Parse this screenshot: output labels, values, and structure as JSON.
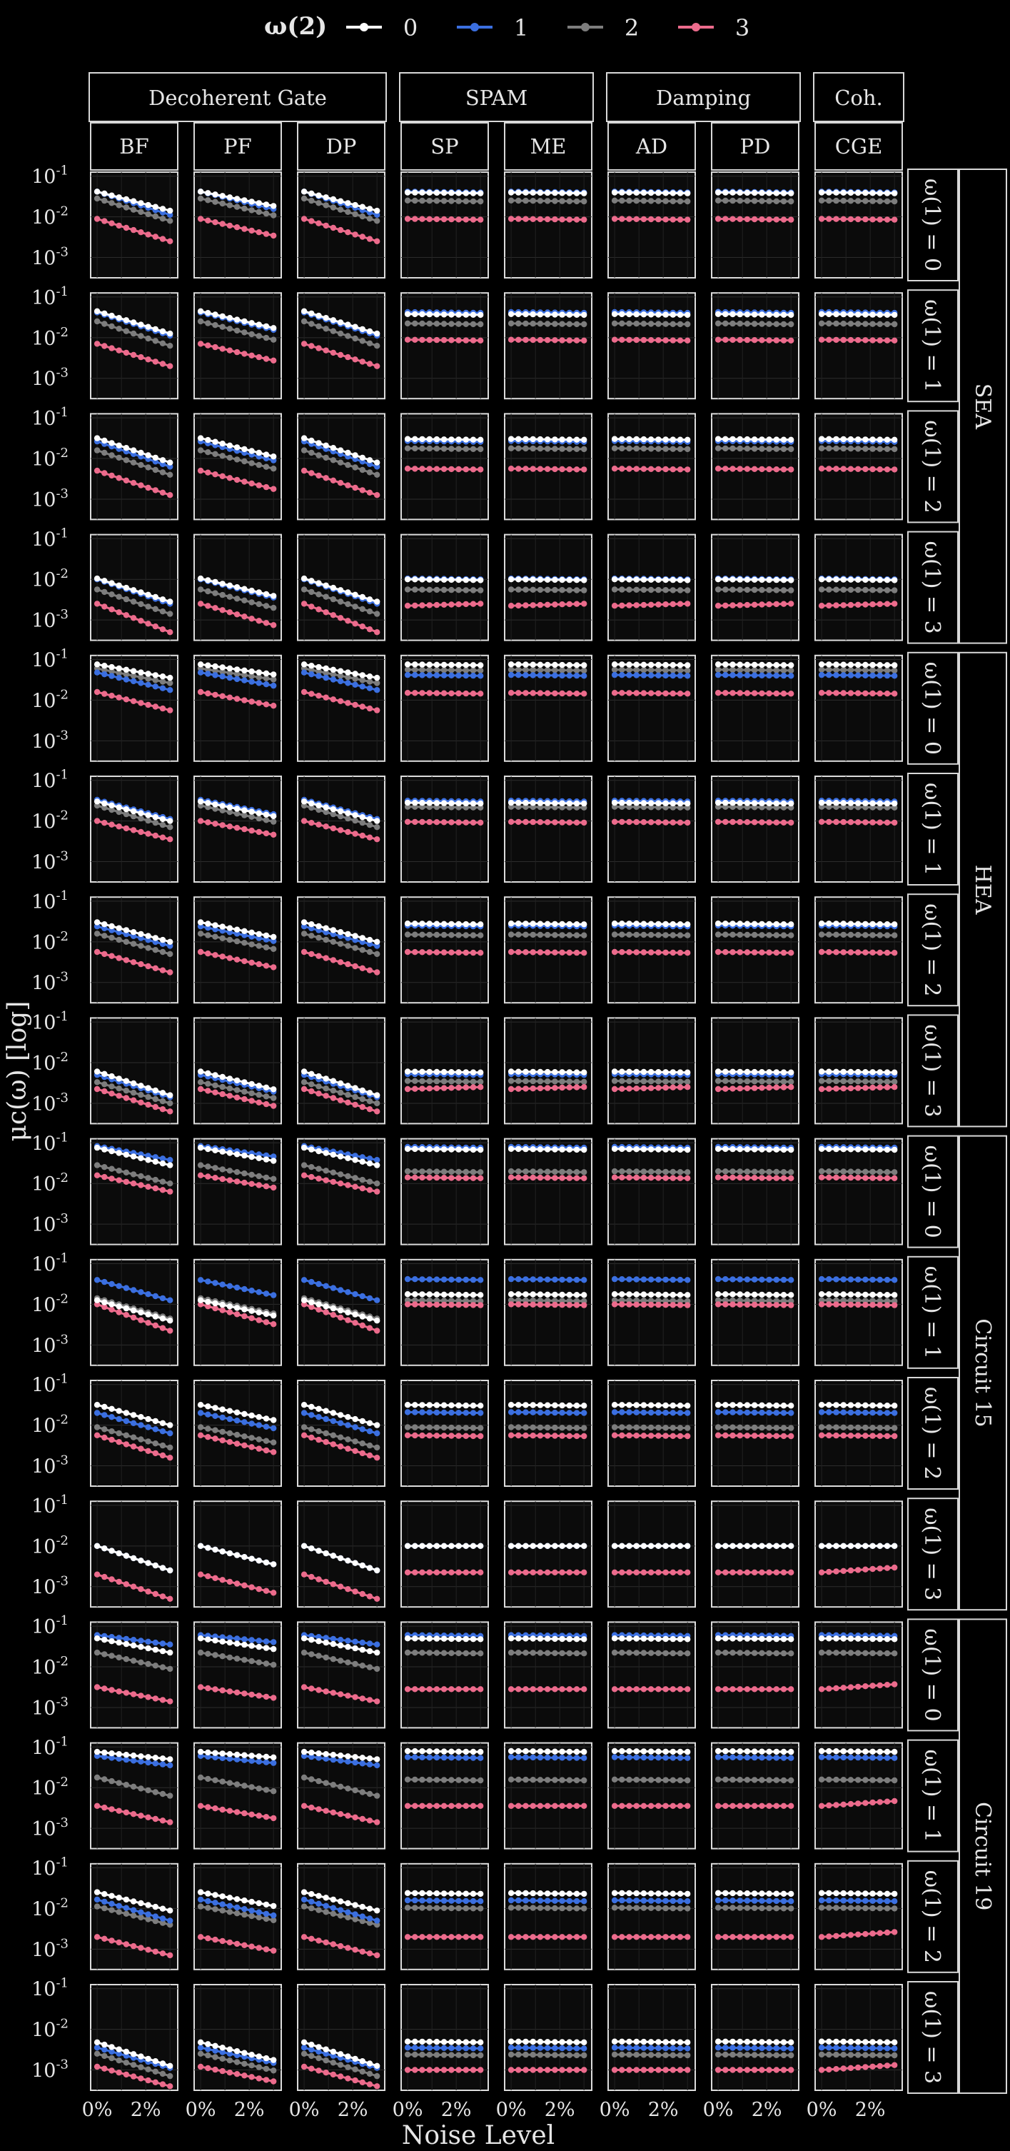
{
  "chart_data": {
    "type": "line",
    "legend": {
      "title": "ω(2)",
      "entries": [
        {
          "label": "0",
          "color": "#ffffff"
        },
        {
          "label": "1",
          "color": "#3b6fe0"
        },
        {
          "label": "2",
          "color": "#7d7d7d"
        },
        {
          "label": "3",
          "color": "#ec6b8c"
        }
      ]
    },
    "xlabel": "Noise Level",
    "ylabel": "μc(ω) [log]",
    "x": [
      0.0,
      0.3,
      0.6,
      0.9,
      1.2,
      1.5,
      1.8,
      2.1,
      2.4,
      2.7,
      3.0
    ],
    "xticks": [
      {
        "value": 0,
        "label": "0%"
      },
      {
        "value": 2,
        "label": "2%"
      }
    ],
    "xlim": [
      -0.15,
      3.2
    ],
    "ylim_log10": [
      -3.5,
      -0.9
    ],
    "yticks": [
      {
        "base": "10",
        "exp": "-1",
        "value": -1
      },
      {
        "base": "10",
        "exp": "-2",
        "value": -2
      },
      {
        "base": "10",
        "exp": "-3",
        "value": -3
      }
    ],
    "column_groups": [
      {
        "label": "Decoherent Gate",
        "columns": [
          "BF",
          "PF",
          "DP"
        ]
      },
      {
        "label": "SPAM",
        "columns": [
          "SP",
          "ME"
        ]
      },
      {
        "label": "Damping",
        "columns": [
          "AD",
          "PD"
        ]
      },
      {
        "label": "Coh.",
        "columns": [
          "CGE"
        ]
      }
    ],
    "row_groups": [
      {
        "label": "SEA",
        "rows": [
          "ω(1) = 0",
          "ω(1) = 1",
          "ω(1) = 2",
          "ω(1) = 3"
        ]
      },
      {
        "label": "HEA",
        "rows": [
          "ω(1) = 0",
          "ω(1) = 1",
          "ω(1) = 2",
          "ω(1) = 3"
        ]
      },
      {
        "label": "Circuit 15",
        "rows": [
          "ω(1) = 0",
          "ω(1) = 1",
          "ω(1) = 2",
          "ω(1) = 3"
        ]
      },
      {
        "label": "Circuit 19",
        "rows": [
          "ω(1) = 0",
          "ω(1) = 1",
          "ω(1) = 2",
          "ω(1) = 3"
        ]
      }
    ],
    "series_note": "log10 of μc at 0% and 3% noise per series [ω(2)=0, 1, 2, 3]; values interpolated linearly in log space between the endpoints",
    "panels": [
      {
        "group": "SEA",
        "row": "ω(1) = 0",
        "decoherent": [
          [
            -1.38,
            -1.85
          ],
          [
            -1.38,
            -1.95
          ],
          [
            -1.55,
            -2.1
          ],
          [
            -2.05,
            -2.6
          ]
        ],
        "flat": [
          [
            -1.4,
            -1.42
          ],
          [
            -1.38,
            -1.4
          ],
          [
            -1.6,
            -1.62
          ],
          [
            -2.05,
            -2.07
          ]
        ],
        "cge_sloped": false
      },
      {
        "group": "SEA",
        "row": "ω(1) = 1",
        "decoherent": [
          [
            -1.35,
            -1.9
          ],
          [
            -1.38,
            -1.95
          ],
          [
            -1.6,
            -2.2
          ],
          [
            -2.15,
            -2.7
          ]
        ],
        "flat": [
          [
            -1.42,
            -1.44
          ],
          [
            -1.37,
            -1.39
          ],
          [
            -1.65,
            -1.67
          ],
          [
            -2.05,
            -2.07
          ]
        ],
        "cge_sloped": false
      },
      {
        "group": "SEA",
        "row": "ω(1) = 2",
        "decoherent": [
          [
            -1.5,
            -2.1
          ],
          [
            -1.58,
            -2.2
          ],
          [
            -1.8,
            -2.4
          ],
          [
            -2.3,
            -2.9
          ]
        ],
        "flat": [
          [
            -1.52,
            -1.54
          ],
          [
            -1.57,
            -1.59
          ],
          [
            -1.75,
            -1.77
          ],
          [
            -2.25,
            -2.27
          ]
        ],
        "cge_sloped": false
      },
      {
        "group": "SEA",
        "row": "ω(1) = 3",
        "decoherent": [
          [
            -1.98,
            -2.55
          ],
          [
            -2.0,
            -2.6
          ],
          [
            -2.25,
            -2.85
          ],
          [
            -2.6,
            -3.3
          ]
        ],
        "flat": [
          [
            -2.0,
            -2.02
          ],
          [
            -1.98,
            -2.0
          ],
          [
            -2.25,
            -2.27
          ],
          [
            -2.65,
            -2.6
          ]
        ],
        "cge_sloped": false
      },
      {
        "group": "HEA",
        "row": "ω(1) = 0",
        "decoherent": [
          [
            -1.12,
            -1.45
          ],
          [
            -1.32,
            -1.75
          ],
          [
            -1.22,
            -1.58
          ],
          [
            -1.8,
            -2.25
          ]
        ],
        "flat": [
          [
            -1.12,
            -1.14
          ],
          [
            -1.38,
            -1.4
          ],
          [
            -1.25,
            -1.27
          ],
          [
            -1.82,
            -1.84
          ]
        ],
        "cge_sloped": false
      },
      {
        "group": "HEA",
        "row": "ω(1) = 1",
        "decoherent": [
          [
            -1.52,
            -2.0
          ],
          [
            -1.48,
            -1.95
          ],
          [
            -1.62,
            -2.15
          ],
          [
            -2.0,
            -2.45
          ]
        ],
        "flat": [
          [
            -1.55,
            -1.57
          ],
          [
            -1.5,
            -1.52
          ],
          [
            -1.65,
            -1.67
          ],
          [
            -2.02,
            -2.04
          ]
        ],
        "cge_sloped": false
      },
      {
        "group": "HEA",
        "row": "ω(1) = 2",
        "decoherent": [
          [
            -1.52,
            -2.0
          ],
          [
            -1.62,
            -2.1
          ],
          [
            -1.8,
            -2.3
          ],
          [
            -2.25,
            -2.75
          ]
        ],
        "flat": [
          [
            -1.55,
            -1.57
          ],
          [
            -1.6,
            -1.62
          ],
          [
            -1.82,
            -1.84
          ],
          [
            -2.25,
            -2.27
          ]
        ],
        "cge_sloped": false
      },
      {
        "group": "HEA",
        "row": "ω(1) = 3",
        "decoherent": [
          [
            -2.22,
            -2.8
          ],
          [
            -2.3,
            -2.85
          ],
          [
            -2.48,
            -3.0
          ],
          [
            -2.65,
            -3.2
          ]
        ],
        "flat": [
          [
            -2.22,
            -2.24
          ],
          [
            -2.28,
            -2.3
          ],
          [
            -2.45,
            -2.47
          ],
          [
            -2.65,
            -2.6
          ]
        ],
        "cge_sloped": false
      },
      {
        "group": "Circuit 15",
        "row": "ω(1) = 0",
        "decoherent": [
          [
            -1.12,
            -1.55
          ],
          [
            -1.08,
            -1.42
          ],
          [
            -1.55,
            -2.0
          ],
          [
            -1.8,
            -2.2
          ]
        ],
        "flat": [
          [
            -1.15,
            -1.17
          ],
          [
            -1.1,
            -1.12
          ],
          [
            -1.7,
            -1.72
          ],
          [
            -1.85,
            -1.87
          ]
        ],
        "cge_sloped": false
      },
      {
        "group": "Circuit 15",
        "row": "ω(1) = 1",
        "decoherent": [
          [
            -1.9,
            -2.4
          ],
          [
            -1.4,
            -1.9
          ],
          [
            -1.85,
            -2.35
          ],
          [
            -2.0,
            -2.65
          ]
        ],
        "flat": [
          [
            -1.75,
            -1.77
          ],
          [
            -1.38,
            -1.4
          ],
          [
            -1.9,
            -1.92
          ],
          [
            -2.0,
            -2.02
          ]
        ],
        "cge_sloped": false
      },
      {
        "group": "Circuit 15",
        "row": "ω(1) = 2",
        "decoherent": [
          [
            -1.5,
            -2.0
          ],
          [
            -1.7,
            -2.2
          ],
          [
            -2.05,
            -2.55
          ],
          [
            -2.25,
            -2.8
          ]
        ],
        "flat": [
          [
            -1.5,
            -1.52
          ],
          [
            -1.68,
            -1.7
          ],
          [
            -2.05,
            -2.07
          ],
          [
            -2.25,
            -2.27
          ]
        ],
        "cge_sloped": false
      },
      {
        "group": "Circuit 15",
        "row": "ω(1) = 3",
        "decoherent": [
          [
            -2.0,
            -2.6
          ],
          [
            -2.0,
            -2.6
          ],
          [
            null,
            null
          ],
          [
            -2.7,
            -3.3
          ]
        ],
        "flat": [
          [
            -2.0,
            -2.0
          ],
          [
            -2.0,
            -2.0
          ],
          [
            null,
            null
          ],
          [
            -2.65,
            -2.65
          ]
        ],
        "cge_sloped": true
      },
      {
        "group": "Circuit 19",
        "row": "ω(1) = 0",
        "decoherent": [
          [
            -1.3,
            -1.65
          ],
          [
            -1.22,
            -1.45
          ],
          [
            -1.65,
            -2.05
          ],
          [
            -2.5,
            -2.85
          ]
        ],
        "flat": [
          [
            -1.3,
            -1.32
          ],
          [
            -1.22,
            -1.24
          ],
          [
            -1.65,
            -1.67
          ],
          [
            -2.55,
            -2.55
          ]
        ],
        "cge_sloped": true
      },
      {
        "group": "Circuit 19",
        "row": "ω(1) = 1",
        "decoherent": [
          [
            -1.12,
            -1.3
          ],
          [
            -1.22,
            -1.45
          ],
          [
            -1.75,
            -2.2
          ],
          [
            -2.45,
            -2.85
          ]
        ],
        "flat": [
          [
            -1.1,
            -1.12
          ],
          [
            -1.25,
            -1.27
          ],
          [
            -1.8,
            -1.82
          ],
          [
            -2.45,
            -2.45
          ]
        ],
        "cge_sloped": true
      },
      {
        "group": "Circuit 19",
        "row": "ω(1) = 2",
        "decoherent": [
          [
            -1.6,
            -2.05
          ],
          [
            -1.78,
            -2.3
          ],
          [
            -1.95,
            -2.4
          ],
          [
            -2.7,
            -3.15
          ]
        ],
        "flat": [
          [
            -1.62,
            -1.64
          ],
          [
            -1.8,
            -1.82
          ],
          [
            -1.98,
            -2.0
          ],
          [
            -2.7,
            -2.7
          ]
        ],
        "cge_sloped": true
      },
      {
        "group": "Circuit 19",
        "row": "ω(1) = 3",
        "decoherent": [
          [
            -2.32,
            -2.9
          ],
          [
            -2.45,
            -2.95
          ],
          [
            -2.6,
            -3.15
          ],
          [
            -2.92,
            -3.4
          ]
        ],
        "flat": [
          [
            -2.3,
            -2.32
          ],
          [
            -2.45,
            -2.47
          ],
          [
            -2.62,
            -2.64
          ],
          [
            -3.0,
            -3.0
          ]
        ],
        "cge_sloped": true
      }
    ]
  }
}
